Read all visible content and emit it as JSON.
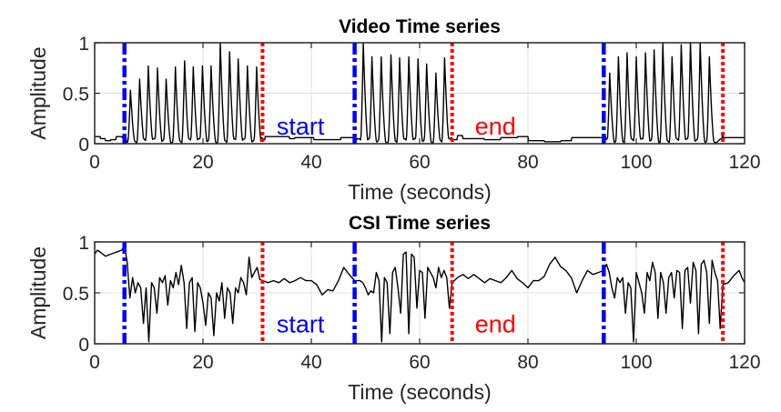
{
  "chart_data": [
    {
      "type": "line",
      "title": "Video Time series",
      "xlabel": "Time (seconds)",
      "ylabel": "Amplitude",
      "xlim": [
        0,
        120
      ],
      "ylim": [
        0,
        1
      ],
      "xticks": [
        "0",
        "20",
        "40",
        "60",
        "80",
        "100",
        "120"
      ],
      "yticks": [
        "0",
        "0.5",
        "1"
      ],
      "grid": true,
      "annotations": [
        {
          "text": "start",
          "x": 38,
          "y": 0.18,
          "color": "#0000ff"
        },
        {
          "text": "end",
          "x": 74,
          "y": 0.18,
          "color": "#ff0000"
        }
      ],
      "start_lines": [
        5.5,
        48,
        94
      ],
      "end_lines": [
        31,
        66,
        116
      ],
      "baseline": [
        [
          0,
          0.07
        ],
        [
          1,
          0.05
        ],
        [
          2,
          0.03
        ],
        [
          3,
          0.04
        ],
        [
          4,
          0.07
        ],
        [
          5,
          0.06
        ],
        [
          5.5,
          0.06
        ],
        [
          31,
          0.04
        ],
        [
          31.5,
          0.07
        ],
        [
          35,
          0.07
        ],
        [
          36,
          0.05
        ],
        [
          37,
          0.06
        ],
        [
          40,
          0.06
        ],
        [
          40.5,
          0.04
        ],
        [
          45,
          0.04
        ],
        [
          45.5,
          0.06
        ],
        [
          48,
          0.06
        ],
        [
          66,
          0.04
        ],
        [
          67,
          0.08
        ],
        [
          68,
          0.05
        ],
        [
          72,
          0.04
        ],
        [
          75,
          0.06
        ],
        [
          78,
          0.07
        ],
        [
          80,
          0.03
        ],
        [
          83,
          0.02
        ],
        [
          86,
          0.03
        ],
        [
          88,
          0.06
        ],
        [
          91,
          0.06
        ],
        [
          94,
          0.08
        ],
        [
          116,
          0.06
        ],
        [
          118,
          0.06
        ],
        [
          120,
          0.03
        ]
      ],
      "active_baseline": 0.03,
      "peaks": [
        [
          6.6,
          0.53
        ],
        [
          8.3,
          0.64
        ],
        [
          9.9,
          0.77
        ],
        [
          11.6,
          0.75
        ],
        [
          13.2,
          0.64
        ],
        [
          14.9,
          0.76
        ],
        [
          16.6,
          0.82
        ],
        [
          18.2,
          0.76
        ],
        [
          19.9,
          0.77
        ],
        [
          21.5,
          0.77
        ],
        [
          23.2,
          1.0
        ],
        [
          24.9,
          0.91
        ],
        [
          26.5,
          0.84
        ],
        [
          28.2,
          0.77
        ],
        [
          29.9,
          0.76
        ],
        [
          49.6,
          1.0
        ],
        [
          51.2,
          0.86
        ],
        [
          52.9,
          0.86
        ],
        [
          54.7,
          0.88
        ],
        [
          56.3,
          0.85
        ],
        [
          58.0,
          0.86
        ],
        [
          59.7,
          0.84
        ],
        [
          61.3,
          0.79
        ],
        [
          63.0,
          0.7
        ],
        [
          64.6,
          0.85
        ],
        [
          95.1,
          0.7
        ],
        [
          96.7,
          0.86
        ],
        [
          98.3,
          0.9
        ],
        [
          100.0,
          0.86
        ],
        [
          101.7,
          0.9
        ],
        [
          103.3,
          0.93
        ],
        [
          104.9,
          1.0
        ],
        [
          106.6,
          0.86
        ],
        [
          108.3,
          0.98
        ],
        [
          110.0,
          1.0
        ],
        [
          111.8,
          1.0
        ],
        [
          113.5,
          0.86
        ]
      ]
    },
    {
      "type": "line",
      "title": "CSI Time series",
      "xlabel": "Time (seconds)",
      "ylabel": "Amplitude",
      "xlim": [
        0,
        120
      ],
      "ylim": [
        0,
        1
      ],
      "xticks": [
        "0",
        "20",
        "40",
        "60",
        "80",
        "100",
        "120"
      ],
      "yticks": [
        "0",
        "0.5",
        "1"
      ],
      "grid": true,
      "annotations": [
        {
          "text": "start",
          "x": 38,
          "y": 0.2,
          "color": "#0000ff"
        },
        {
          "text": "end",
          "x": 74,
          "y": 0.2,
          "color": "#ff0000"
        }
      ],
      "start_lines": [
        5.5,
        48,
        94
      ],
      "end_lines": [
        31,
        66,
        116
      ],
      "series": [
        [
          0,
          0.88
        ],
        [
          0.5,
          0.92
        ],
        [
          1,
          0.9
        ],
        [
          2,
          0.86
        ],
        [
          3,
          0.88
        ],
        [
          4,
          0.9
        ],
        [
          5,
          0.92
        ],
        [
          5.5,
          0.97
        ],
        [
          6,
          0.8
        ],
        [
          6.5,
          0.45
        ],
        [
          7,
          0.65
        ],
        [
          7.5,
          0.5
        ],
        [
          8,
          0.6
        ],
        [
          8.5,
          0.55
        ],
        [
          9,
          0.2
        ],
        [
          9.5,
          0.55
        ],
        [
          10,
          0.02
        ],
        [
          10.5,
          0.6
        ],
        [
          11,
          0.55
        ],
        [
          11.5,
          0.3
        ],
        [
          12,
          0.65
        ],
        [
          12.5,
          0.6
        ],
        [
          13,
          0.67
        ],
        [
          13.5,
          0.38
        ],
        [
          14,
          0.62
        ],
        [
          14.5,
          0.55
        ],
        [
          15,
          0.7
        ],
        [
          15.5,
          0.58
        ],
        [
          16,
          0.77
        ],
        [
          16.5,
          0.6
        ],
        [
          17,
          0.15
        ],
        [
          17.5,
          0.6
        ],
        [
          18,
          0.65
        ],
        [
          18.5,
          0.12
        ],
        [
          19,
          0.6
        ],
        [
          19.5,
          0.55
        ],
        [
          20,
          0.4
        ],
        [
          20.5,
          0.18
        ],
        [
          21,
          0.5
        ],
        [
          21.5,
          0.45
        ],
        [
          22,
          0.08
        ],
        [
          22.5,
          0.5
        ],
        [
          23,
          0.42
        ],
        [
          23.5,
          0.6
        ],
        [
          24,
          0.25
        ],
        [
          24.5,
          0.55
        ],
        [
          25,
          0.5
        ],
        [
          25.5,
          0.2
        ],
        [
          26,
          0.55
        ],
        [
          26.5,
          0.5
        ],
        [
          27,
          0.65
        ],
        [
          27.5,
          0.6
        ],
        [
          28,
          0.48
        ],
        [
          28.5,
          0.85
        ],
        [
          29,
          0.65
        ],
        [
          29.5,
          0.7
        ],
        [
          30,
          0.75
        ],
        [
          30.5,
          0.63
        ],
        [
          32,
          0.6
        ],
        [
          33,
          0.62
        ],
        [
          34,
          0.6
        ],
        [
          35,
          0.64
        ],
        [
          36,
          0.6
        ],
        [
          37,
          0.62
        ],
        [
          38,
          0.65
        ],
        [
          39,
          0.62
        ],
        [
          40,
          0.62
        ],
        [
          41,
          0.58
        ],
        [
          42,
          0.48
        ],
        [
          43,
          0.53
        ],
        [
          44,
          0.52
        ],
        [
          45,
          0.62
        ],
        [
          46,
          0.75
        ],
        [
          47,
          0.68
        ],
        [
          48,
          0.62
        ],
        [
          49,
          0.62
        ],
        [
          49.5,
          0.6
        ],
        [
          50,
          0.55
        ],
        [
          50.5,
          0.48
        ],
        [
          51,
          0.52
        ],
        [
          51.5,
          0.5
        ],
        [
          52,
          0.7
        ],
        [
          52.5,
          0.62
        ],
        [
          53,
          0.02
        ],
        [
          53.5,
          0.65
        ],
        [
          54,
          0.6
        ],
        [
          54.5,
          0.1
        ],
        [
          55,
          0.7
        ],
        [
          55.5,
          0.75
        ],
        [
          56,
          0.55
        ],
        [
          56.5,
          0.3
        ],
        [
          57,
          0.88
        ],
        [
          57.5,
          0.9
        ],
        [
          58,
          0.1
        ],
        [
          58.5,
          0.88
        ],
        [
          59,
          0.85
        ],
        [
          59.5,
          0.35
        ],
        [
          60,
          0.72
        ],
        [
          60.5,
          0.7
        ],
        [
          61,
          0.25
        ],
        [
          61.5,
          0.75
        ],
        [
          62,
          0.7
        ],
        [
          62.5,
          0.65
        ],
        [
          63,
          0.55
        ],
        [
          63.5,
          0.75
        ],
        [
          64,
          0.65
        ],
        [
          64.5,
          0.72
        ],
        [
          65,
          0.65
        ],
        [
          65.5,
          0.35
        ],
        [
          66,
          0.6
        ],
        [
          67,
          0.65
        ],
        [
          68,
          0.68
        ],
        [
          69,
          0.64
        ],
        [
          70,
          0.68
        ],
        [
          71,
          0.64
        ],
        [
          72,
          0.6
        ],
        [
          73,
          0.64
        ],
        [
          74,
          0.62
        ],
        [
          75,
          0.6
        ],
        [
          76,
          0.65
        ],
        [
          77,
          0.72
        ],
        [
          78,
          0.64
        ],
        [
          79,
          0.6
        ],
        [
          80,
          0.55
        ],
        [
          81,
          0.62
        ],
        [
          82,
          0.62
        ],
        [
          83,
          0.66
        ],
        [
          84,
          0.78
        ],
        [
          85,
          0.85
        ],
        [
          86,
          0.76
        ],
        [
          87,
          0.72
        ],
        [
          88,
          0.65
        ],
        [
          89,
          0.5
        ],
        [
          90,
          0.62
        ],
        [
          91,
          0.72
        ],
        [
          92,
          0.68
        ],
        [
          93,
          0.7
        ],
        [
          94,
          0.72
        ],
        [
          94.5,
          0.78
        ],
        [
          95,
          0.7
        ],
        [
          95.5,
          0.55
        ],
        [
          96,
          0.45
        ],
        [
          96.5,
          0.65
        ],
        [
          97,
          0.6
        ],
        [
          97.5,
          0.65
        ],
        [
          98,
          0.3
        ],
        [
          98.5,
          0.6
        ],
        [
          99,
          0.55
        ],
        [
          99.5,
          0.02
        ],
        [
          100,
          0.7
        ],
        [
          100.5,
          0.6
        ],
        [
          101,
          0.5
        ],
        [
          101.5,
          0.3
        ],
        [
          102,
          0.7
        ],
        [
          102.5,
          0.62
        ],
        [
          103,
          0.8
        ],
        [
          103.5,
          0.7
        ],
        [
          104,
          0.25
        ],
        [
          104.5,
          0.7
        ],
        [
          105,
          0.6
        ],
        [
          105.5,
          0.3
        ],
        [
          106,
          0.65
        ],
        [
          106.5,
          0.7
        ],
        [
          107,
          0.45
        ],
        [
          107.5,
          0.72
        ],
        [
          108,
          0.7
        ],
        [
          108.5,
          0.15
        ],
        [
          109,
          0.72
        ],
        [
          109.5,
          0.75
        ],
        [
          110,
          0.4
        ],
        [
          110.5,
          0.8
        ],
        [
          111,
          0.72
        ],
        [
          111.5,
          0.1
        ],
        [
          112,
          0.78
        ],
        [
          112.5,
          0.82
        ],
        [
          113,
          0.7
        ],
        [
          113.5,
          0.2
        ],
        [
          114,
          0.82
        ],
        [
          114.5,
          0.7
        ],
        [
          115,
          0.62
        ],
        [
          115.5,
          0.15
        ],
        [
          116,
          0.58
        ],
        [
          117,
          0.6
        ],
        [
          118,
          0.67
        ],
        [
          119,
          0.72
        ],
        [
          119.5,
          0.65
        ],
        [
          120,
          0.6
        ]
      ]
    }
  ],
  "colors": {
    "start": "#0000ff",
    "end": "#ff0000",
    "line": "#000000"
  }
}
